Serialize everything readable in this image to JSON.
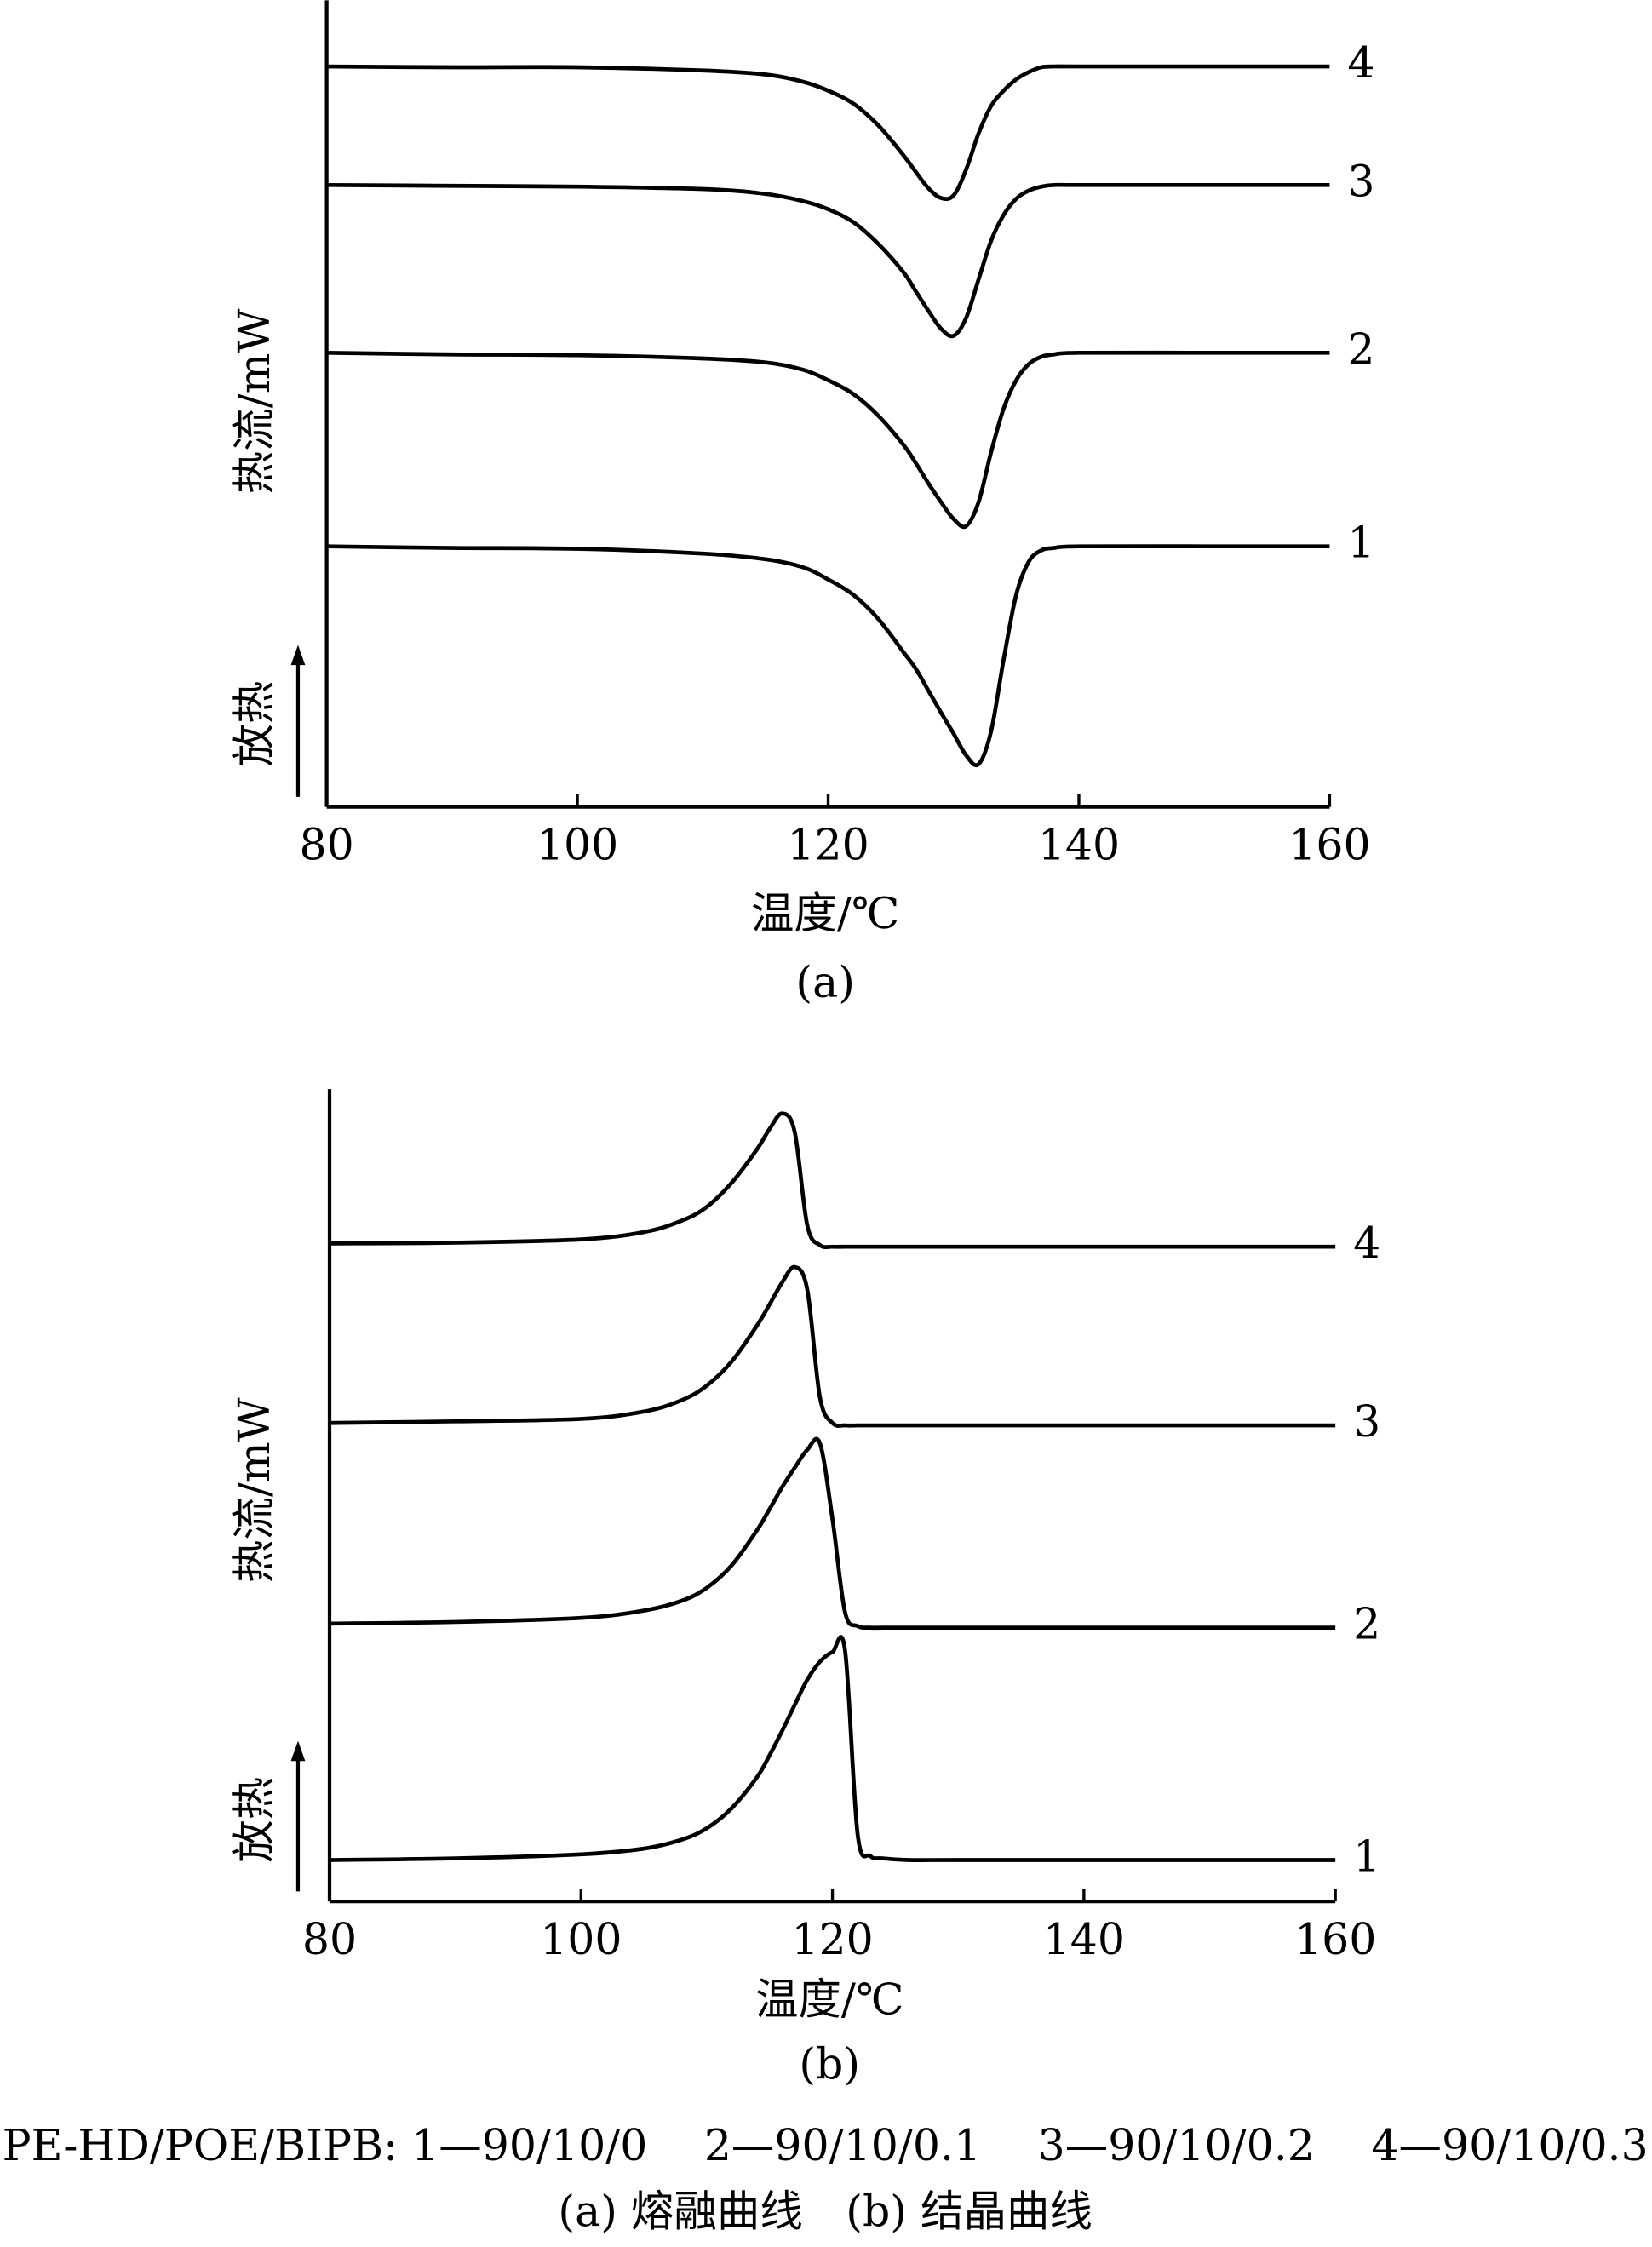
{
  "chart_data": [
    {
      "type": "line",
      "xlabel": "温度/℃",
      "ylabel": "热流/mW",
      "direction_label": "放热",
      "label": "(a)",
      "x": [
        80,
        90,
        100,
        110,
        115,
        118,
        120,
        122,
        124,
        126,
        127,
        128,
        129,
        130,
        131,
        132,
        133,
        134,
        135,
        136,
        137,
        138,
        140,
        150,
        160
      ],
      "xlim": [
        80,
        160
      ],
      "xticks": [
        80,
        100,
        120,
        140,
        160
      ],
      "ylim": [
        0,
        100
      ],
      "series": [
        {
          "name": "1",
          "color": "#000000",
          "values": [
            32.3,
            32.1,
            32.0,
            31.4,
            30.7,
            29.7,
            28.2,
            26.3,
            23.3,
            19.2,
            17.1,
            14.4,
            11.7,
            9.1,
            6.4,
            5.3,
            9.4,
            18.3,
            26.3,
            30.4,
            31.8,
            32.1,
            32.3,
            32.3,
            32.3
          ]
        },
        {
          "name": "2",
          "color": "#000000",
          "values": [
            56.3,
            56.1,
            56.0,
            55.6,
            55.1,
            54.2,
            52.9,
            51.2,
            48.5,
            44.9,
            42.6,
            40.1,
            37.8,
            35.7,
            34.8,
            37.8,
            44.0,
            49.4,
            52.9,
            54.9,
            55.8,
            56.1,
            56.3,
            56.3,
            56.3
          ]
        },
        {
          "name": "3",
          "color": "#000000",
          "values": [
            77.1,
            77.0,
            76.9,
            76.6,
            76.0,
            75.1,
            74.1,
            72.5,
            69.8,
            66.3,
            63.9,
            61.5,
            59.3,
            58.4,
            60.6,
            65.4,
            70.2,
            73.4,
            75.4,
            76.4,
            76.9,
            77.1,
            77.1,
            77.1,
            77.1
          ]
        },
        {
          "name": "4",
          "color": "#000000",
          "values": [
            91.8,
            91.7,
            91.7,
            91.3,
            90.8,
            89.9,
            88.8,
            87.2,
            84.5,
            80.8,
            78.7,
            76.7,
            75.5,
            75.8,
            79.0,
            83.5,
            86.9,
            88.8,
            90.2,
            91.1,
            91.7,
            91.8,
            91.8,
            91.8,
            91.8
          ]
        }
      ]
    },
    {
      "type": "line",
      "xlabel": "温度/℃",
      "ylabel": "热流/mW",
      "direction_label": "放热",
      "label": "(b)",
      "x": [
        80,
        90,
        100,
        105,
        108,
        110,
        112,
        114,
        115,
        116,
        117,
        118,
        119,
        120,
        121,
        122,
        123,
        124,
        126,
        130,
        140,
        150,
        160
      ],
      "xlim": [
        80,
        160
      ],
      "xticks": [
        80,
        100,
        120,
        140,
        160
      ],
      "ylim": [
        0,
        100
      ],
      "series": [
        {
          "name": "1",
          "color": "#000000",
          "values": [
            5.1,
            5.3,
            5.8,
            6.5,
            7.6,
            9.0,
            11.5,
            15.3,
            18.0,
            21.0,
            24.2,
            27.3,
            29.5,
            30.7,
            30.9,
            8.3,
            5.6,
            5.3,
            5.1,
            5.1,
            5.1,
            5.1,
            5.1
          ]
        },
        {
          "name": "2",
          "color": "#000000",
          "values": [
            34.2,
            34.4,
            34.9,
            35.8,
            37.0,
            38.6,
            41.4,
            45.7,
            48.3,
            51.0,
            53.4,
            55.6,
            56.4,
            47.1,
            35.6,
            33.9,
            33.7,
            33.7,
            33.7,
            33.7,
            33.7,
            33.7,
            33.7
          ]
        },
        {
          "name": "3",
          "color": "#000000",
          "values": [
            58.9,
            59.1,
            59.4,
            60.3,
            61.7,
            63.5,
            66.5,
            70.9,
            73.5,
            76.2,
            78.1,
            75.3,
            62.1,
            58.9,
            58.6,
            58.6,
            58.6,
            58.6,
            58.6,
            58.6,
            58.6,
            58.6,
            58.6
          ]
        },
        {
          "name": "4",
          "color": "#000000",
          "values": [
            81.0,
            81.1,
            81.5,
            82.4,
            83.8,
            85.5,
            88.5,
            92.6,
            95.1,
            97.0,
            94.7,
            83.2,
            80.8,
            80.6,
            80.6,
            80.6,
            80.6,
            80.6,
            80.6,
            80.6,
            80.6,
            80.6,
            80.6
          ]
        }
      ]
    }
  ],
  "caption": [
    "PE-HD/POE/BIPB: 1—90/10/0　 2—90/10/0.1　 3—90/10/0.2　 4—90/10/0.3",
    "(a) 熔融曲线　(b) 结晶曲线"
  ]
}
